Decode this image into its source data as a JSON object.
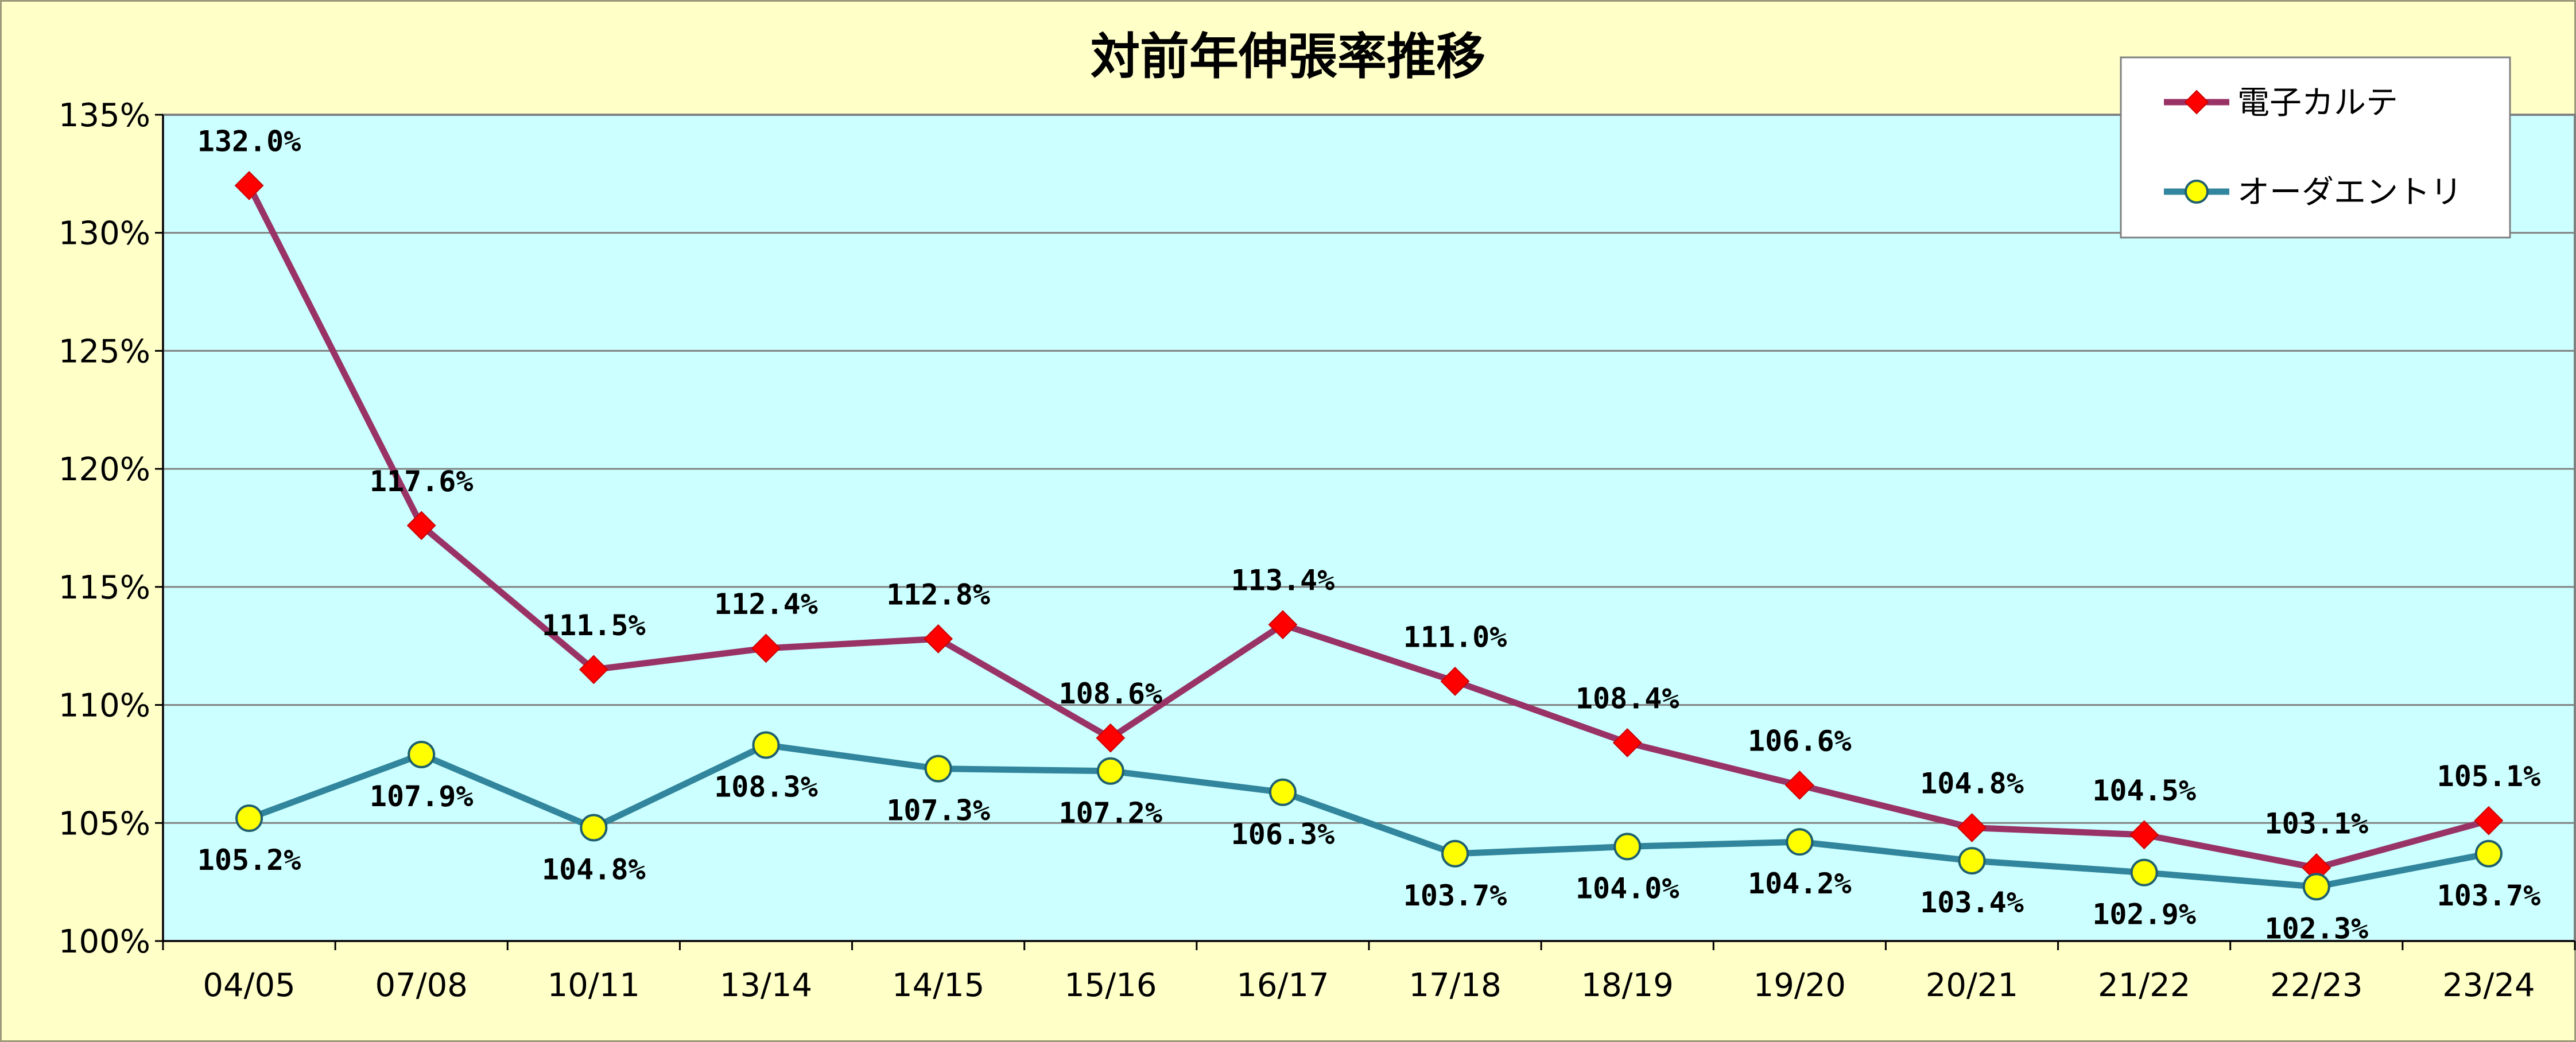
{
  "chart_data": {
    "type": "line",
    "title": "対前年伸張率推移",
    "categories": [
      "04/05",
      "07/08",
      "10/11",
      "13/14",
      "14/15",
      "15/16",
      "16/17",
      "17/18",
      "18/19",
      "19/20",
      "20/21",
      "21/22",
      "22/23",
      "23/24"
    ],
    "ylim": [
      100,
      135
    ],
    "yticks": [
      100,
      105,
      110,
      115,
      120,
      125,
      130,
      135
    ],
    "ytick_labels": [
      "100%",
      "105%",
      "110%",
      "115%",
      "120%",
      "125%",
      "130%",
      "135%"
    ],
    "grid": true,
    "legend_position": "top-right",
    "series": [
      {
        "name": "電子カルテ",
        "color": "#993366",
        "marker_color": "#ff0000",
        "marker": "diamond",
        "values": [
          132.0,
          117.6,
          111.5,
          112.4,
          112.8,
          108.6,
          113.4,
          111.0,
          108.4,
          106.6,
          104.8,
          104.5,
          103.1,
          105.1
        ],
        "labels": [
          "132.0%",
          "117.6%",
          "111.5%",
          "112.4%",
          "112.8%",
          "108.6%",
          "113.4%",
          "111.0%",
          "108.4%",
          "106.6%",
          "104.8%",
          "104.5%",
          "103.1%",
          "105.1%"
        ]
      },
      {
        "name": "オーダエントリ",
        "color": "#31859c",
        "marker_color": "#ffff00",
        "marker": "circle",
        "values": [
          105.2,
          107.9,
          104.8,
          108.3,
          107.3,
          107.2,
          106.3,
          103.7,
          104.0,
          104.2,
          103.4,
          102.9,
          102.3,
          103.7
        ],
        "labels": [
          "105.2%",
          "107.9%",
          "104.8%",
          "108.3%",
          "107.3%",
          "107.2%",
          "106.3%",
          "103.7%",
          "104.0%",
          "104.2%",
          "103.4%",
          "102.9%",
          "102.3%",
          "103.7%"
        ]
      }
    ]
  }
}
